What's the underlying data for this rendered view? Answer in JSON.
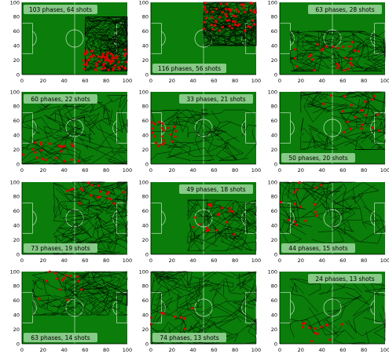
{
  "colors": {
    "pitch": "#0a7d0a",
    "lines": "#cfe8cf",
    "paths": "#000000",
    "shots": "#e00000",
    "label_box": "#8fcf8f"
  },
  "chart_data": [
    {
      "type": "scatter",
      "title": "103 phases, 64 shots",
      "label_pos": "top",
      "xlim": [
        0,
        100
      ],
      "ylim": [
        0,
        100
      ],
      "xticks": [
        0,
        20,
        40,
        60,
        80,
        100
      ],
      "yticks": [
        0,
        20,
        40,
        60,
        80,
        100
      ],
      "path_region": {
        "x": [
          60,
          100
        ],
        "y": [
          5,
          80
        ]
      },
      "shot_region": {
        "x": [
          58,
          100
        ],
        "y": [
          5,
          35
        ]
      }
    },
    {
      "type": "scatter",
      "title": "116 phases, 56 shots",
      "label_pos": "bottom",
      "xlim": [
        0,
        100
      ],
      "ylim": [
        0,
        100
      ],
      "xticks": [
        0,
        20,
        40,
        60,
        80,
        100
      ],
      "yticks": [
        0,
        20,
        40,
        60,
        80,
        100
      ],
      "path_region": {
        "x": [
          50,
          100
        ],
        "y": [
          40,
          100
        ]
      },
      "shot_region": {
        "x": [
          50,
          100
        ],
        "y": [
          60,
          100
        ]
      }
    },
    {
      "type": "scatter",
      "title": "63 phases, 28 shots",
      "label_pos": "top",
      "xlim": [
        0,
        100
      ],
      "ylim": [
        0,
        100
      ],
      "xticks": [
        0,
        20,
        40,
        60,
        80,
        100
      ],
      "yticks": [
        0,
        20,
        40,
        60,
        80,
        100
      ],
      "path_region": {
        "x": [
          10,
          100
        ],
        "y": [
          5,
          60
        ]
      },
      "shot_region": {
        "x": [
          10,
          75
        ],
        "y": [
          5,
          45
        ]
      }
    },
    {
      "type": "scatter",
      "title": "60 phases, 22 shots",
      "label_pos": "top",
      "xlim": [
        0,
        100
      ],
      "ylim": [
        0,
        100
      ],
      "xticks": [
        0,
        20,
        40,
        60,
        80,
        100
      ],
      "yticks": [
        0,
        20,
        40,
        60,
        80,
        100
      ],
      "path_region": {
        "x": [
          0,
          100
        ],
        "y": [
          0,
          95
        ]
      },
      "shot_region": {
        "x": [
          0,
          55
        ],
        "y": [
          0,
          30
        ]
      }
    },
    {
      "type": "scatter",
      "title": "33 phases, 21 shots",
      "label_pos": "top",
      "xlim": [
        0,
        100
      ],
      "ylim": [
        0,
        100
      ],
      "xticks": [
        0,
        20,
        40,
        60,
        80,
        100
      ],
      "yticks": [
        0,
        20,
        40,
        60,
        80,
        100
      ],
      "path_region": {
        "x": [
          0,
          100
        ],
        "y": [
          5,
          75
        ]
      },
      "shot_region": {
        "x": [
          0,
          28
        ],
        "y": [
          25,
          60
        ]
      }
    },
    {
      "type": "scatter",
      "title": "50 phases, 20 shots",
      "label_pos": "bottom",
      "xlim": [
        0,
        100
      ],
      "ylim": [
        0,
        100
      ],
      "xticks": [
        0,
        20,
        40,
        60,
        80,
        100
      ],
      "yticks": [
        0,
        20,
        40,
        60,
        80,
        100
      ],
      "path_region": {
        "x": [
          20,
          100
        ],
        "y": [
          20,
          100
        ]
      },
      "shot_region": {
        "x": [
          35,
          95
        ],
        "y": [
          40,
          95
        ]
      }
    },
    {
      "type": "scatter",
      "title": "73 phases, 19 shots",
      "label_pos": "bottom",
      "xlim": [
        0,
        100
      ],
      "ylim": [
        0,
        100
      ],
      "xticks": [
        0,
        20,
        40,
        60,
        80,
        100
      ],
      "yticks": [
        0,
        20,
        40,
        60,
        80,
        100
      ],
      "path_region": {
        "x": [
          30,
          100
        ],
        "y": [
          0,
          100
        ]
      },
      "shot_region": {
        "x": [
          40,
          100
        ],
        "y": [
          70,
          100
        ]
      }
    },
    {
      "type": "scatter",
      "title": "49 phases, 18 shots",
      "label_pos": "top",
      "xlim": [
        0,
        100
      ],
      "ylim": [
        0,
        100
      ],
      "xticks": [
        0,
        20,
        40,
        60,
        80,
        100
      ],
      "yticks": [
        0,
        20,
        40,
        60,
        80,
        100
      ],
      "path_region": {
        "x": [
          35,
          100
        ],
        "y": [
          5,
          75
        ]
      },
      "shot_region": {
        "x": [
          40,
          80
        ],
        "y": [
          25,
          70
        ]
      }
    },
    {
      "type": "scatter",
      "title": "44 phases, 15 shots",
      "label_pos": "bottom",
      "xlim": [
        0,
        100
      ],
      "ylim": [
        0,
        100
      ],
      "xticks": [
        0,
        20,
        40,
        60,
        80,
        100
      ],
      "yticks": [
        0,
        20,
        40,
        60,
        80,
        100
      ],
      "path_region": {
        "x": [
          0,
          100
        ],
        "y": [
          15,
          100
        ]
      },
      "shot_region": {
        "x": [
          0,
          40
        ],
        "y": [
          40,
          100
        ]
      }
    },
    {
      "type": "scatter",
      "title": "63 phases, 14 shots",
      "label_pos": "bottom",
      "xlim": [
        0,
        100
      ],
      "ylim": [
        0,
        100
      ],
      "xticks": [
        0,
        20,
        40,
        60,
        80,
        100
      ],
      "yticks": [
        0,
        20,
        40,
        60,
        80,
        100
      ],
      "path_region": {
        "x": [
          10,
          100
        ],
        "y": [
          40,
          100
        ]
      },
      "shot_region": {
        "x": [
          10,
          60
        ],
        "y": [
          60,
          100
        ]
      }
    },
    {
      "type": "scatter",
      "title": "74 phases, 13 shots",
      "label_pos": "bottom",
      "xlim": [
        0,
        100
      ],
      "ylim": [
        0,
        100
      ],
      "xticks": [
        0,
        20,
        40,
        60,
        80,
        100
      ],
      "yticks": [
        0,
        20,
        40,
        60,
        80,
        100
      ],
      "path_region": {
        "x": [
          0,
          100
        ],
        "y": [
          0,
          100
        ]
      },
      "shot_region": {
        "x": [
          0,
          40
        ],
        "y": [
          0,
          55
        ]
      }
    },
    {
      "type": "scatter",
      "title": "24 phases, 13 shots",
      "label_pos": "top",
      "xlim": [
        0,
        100
      ],
      "ylim": [
        0,
        100
      ],
      "xticks": [
        0,
        20,
        40,
        60,
        80,
        100
      ],
      "yticks": [
        0,
        20,
        40,
        60,
        80,
        100
      ],
      "path_region": {
        "x": [
          10,
          100
        ],
        "y": [
          0,
          90
        ]
      },
      "shot_region": {
        "x": [
          20,
          60
        ],
        "y": [
          0,
          30
        ]
      }
    }
  ]
}
